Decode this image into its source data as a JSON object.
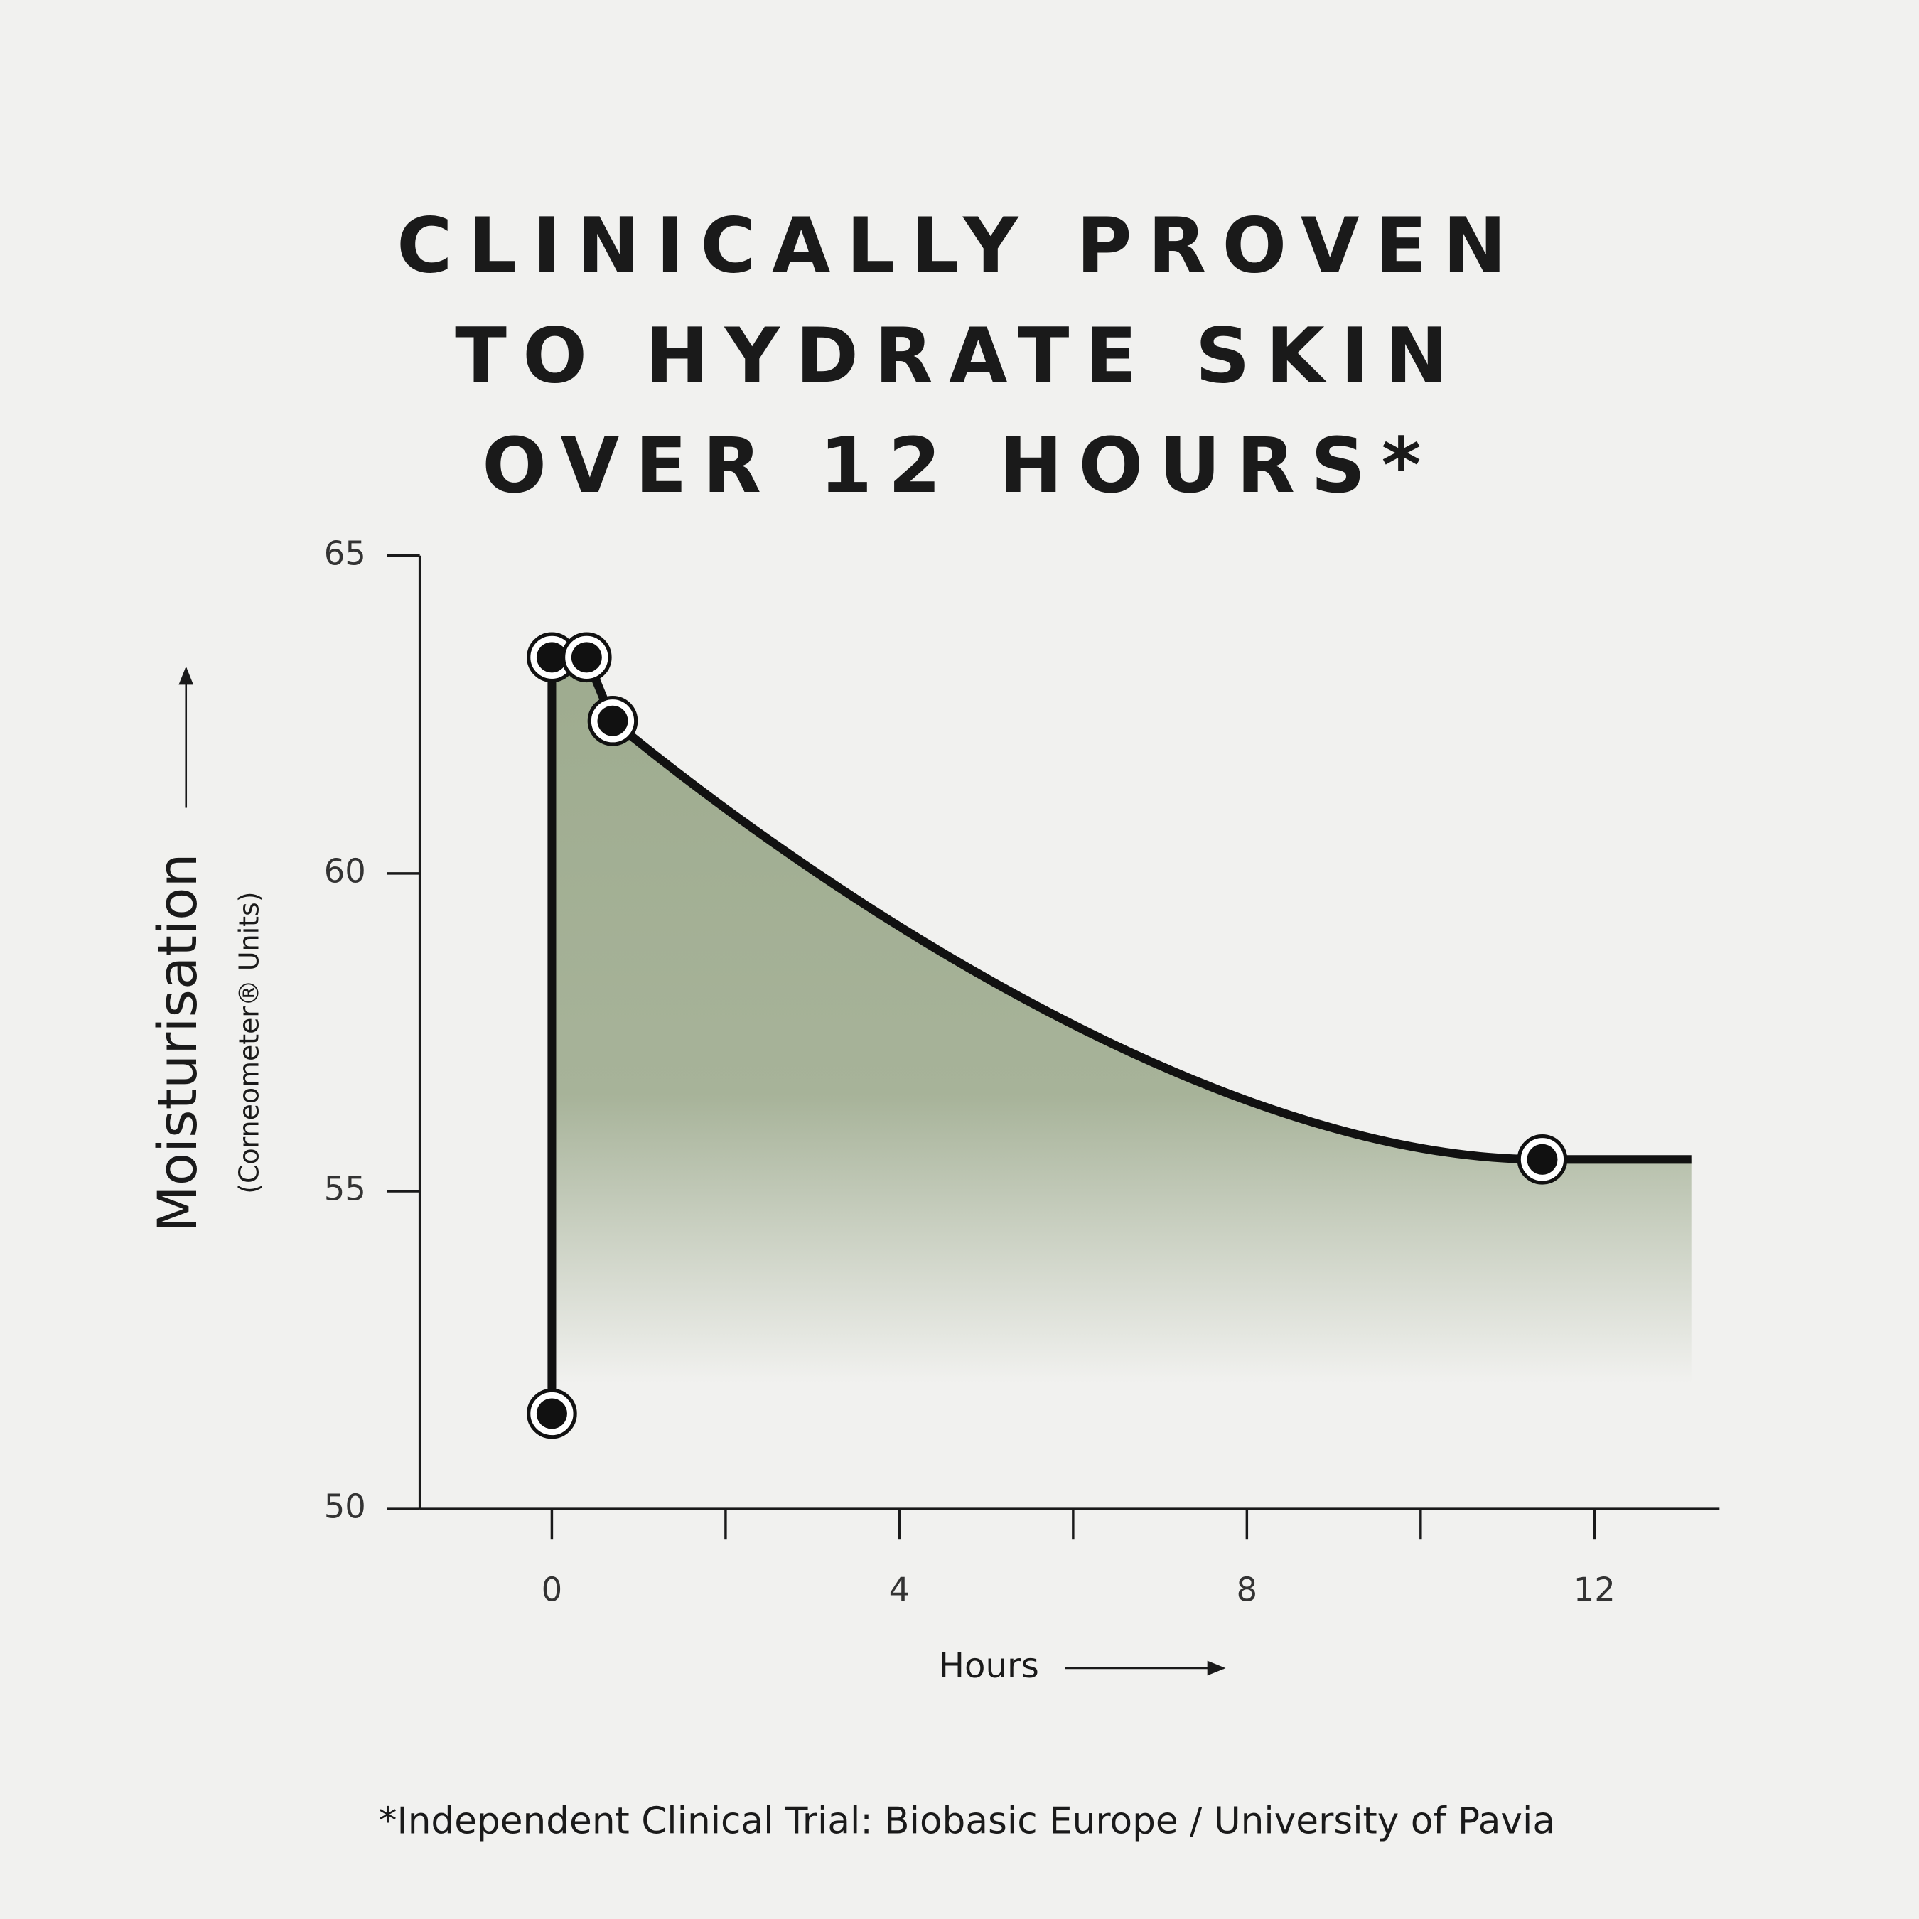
{
  "chart_data": {
    "type": "area",
    "title": [
      "CLINICALLY PROVEN",
      "TO HYDRATE SKIN",
      "OVER 12 HOURS*"
    ],
    "y_label": "Moisturisation",
    "y_sublabel": "(Corneometer® Units)",
    "x_label": "Hours",
    "footnote": "*Independent Clinical Trial: Biobasic Europe / University of Pavia",
    "x": [
      0,
      0,
      0.4,
      0.7,
      11.4
    ],
    "values": [
      51.5,
      63.4,
      63.4,
      62.4,
      55.5
    ],
    "color": "#111111",
    "fill_color": "#9aa88a",
    "xlim": [
      -1.52,
      13.44
    ],
    "xticks": [
      0,
      4,
      8,
      12
    ],
    "xminorticks": [
      2,
      6,
      10
    ],
    "ylim": [
      50,
      65
    ],
    "yticks": [
      50,
      55,
      60,
      65
    ]
  }
}
